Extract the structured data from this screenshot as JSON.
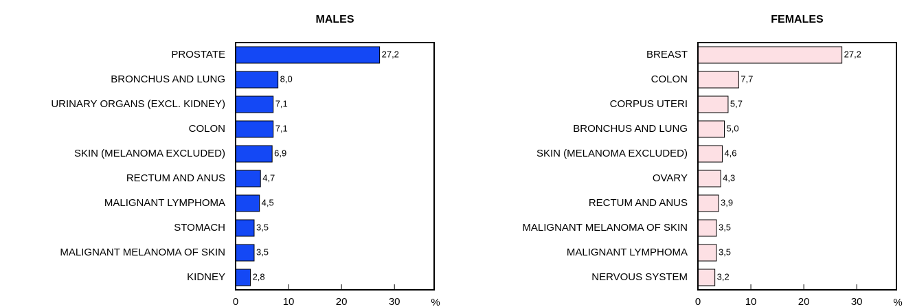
{
  "chart_data": [
    {
      "type": "barh",
      "title": "MALES",
      "color": "#1448f5",
      "categories": [
        "PROSTATE",
        "BRONCHUS AND LUNG",
        "URINARY ORGANS (EXCL. KIDNEY)",
        "COLON",
        "SKIN (MELANOMA EXCLUDED)",
        "RECTUM AND ANUS",
        "MALIGNANT LYMPHOMA",
        "STOMACH",
        "MALIGNANT MELANOMA OF SKIN",
        "KIDNEY"
      ],
      "values": [
        27.2,
        8.0,
        7.1,
        7.1,
        6.9,
        4.7,
        4.5,
        3.5,
        3.5,
        2.8
      ],
      "value_labels": [
        "27,2",
        "8,0",
        "7,1",
        "7,1",
        "6,9",
        "4,7",
        "4,5",
        "3,5",
        "3,5",
        "2,8"
      ],
      "xlabel": "%",
      "xlim": [
        0,
        37.5
      ],
      "xticks": [
        0,
        10,
        20,
        30
      ]
    },
    {
      "type": "barh",
      "title": "FEMALES",
      "color": "#fde0e4",
      "categories": [
        "BREAST",
        "COLON",
        "CORPUS UTERI",
        "BRONCHUS AND LUNG",
        "SKIN (MELANOMA EXCLUDED)",
        "OVARY",
        "RECTUM AND ANUS",
        "MALIGNANT MELANOMA OF SKIN",
        "MALIGNANT LYMPHOMA",
        "NERVOUS SYSTEM"
      ],
      "values": [
        27.2,
        7.7,
        5.7,
        5.0,
        4.6,
        4.3,
        3.9,
        3.5,
        3.5,
        3.2
      ],
      "value_labels": [
        "27,2",
        "7,7",
        "5,7",
        "5,0",
        "4,6",
        "4,3",
        "3,9",
        "3,5",
        "3,5",
        "3,2"
      ],
      "xlabel": "%",
      "xlim": [
        0,
        37.5
      ],
      "xticks": [
        0,
        10,
        20,
        30
      ]
    }
  ]
}
